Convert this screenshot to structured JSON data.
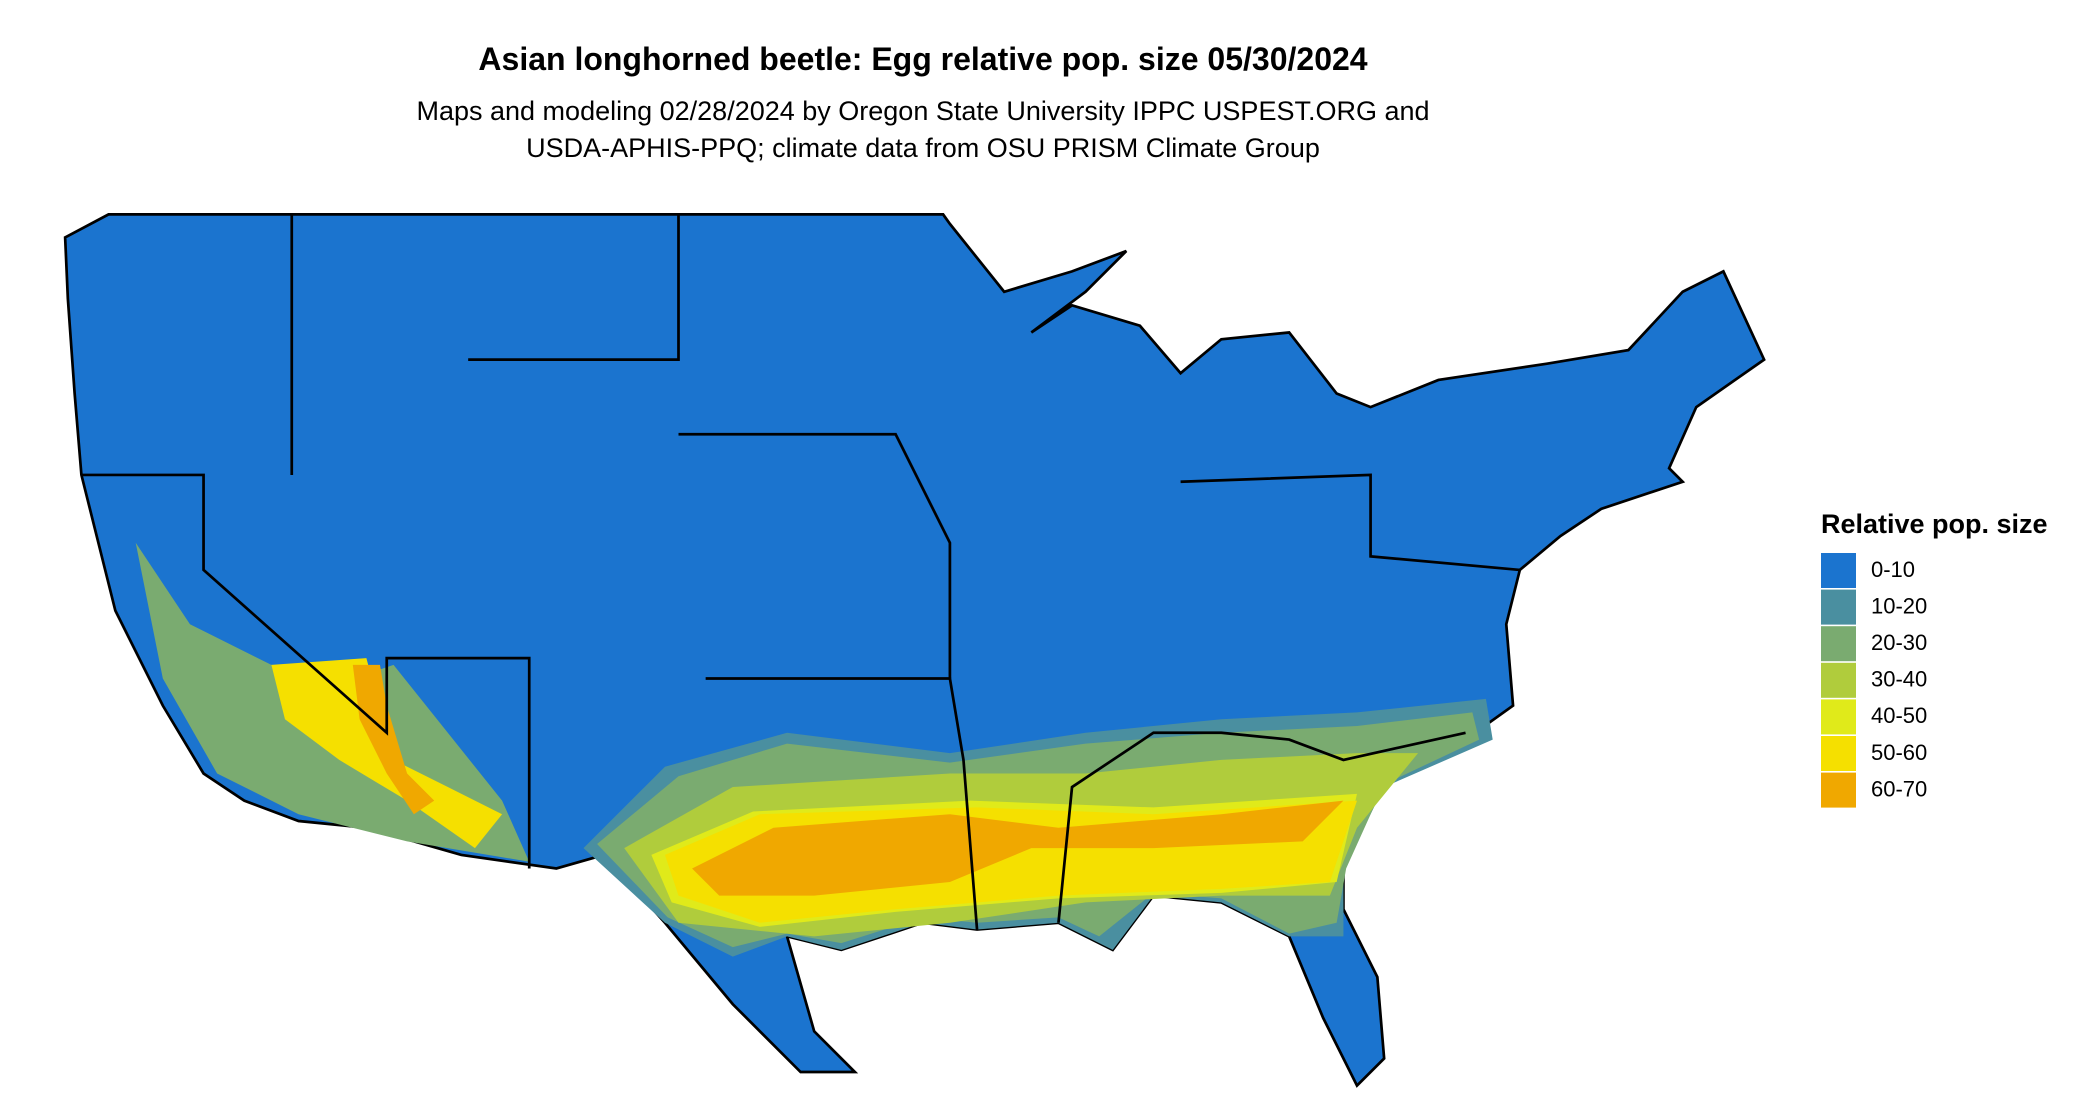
{
  "title": "Asian longhorned beetle: Egg relative pop. size 05/30/2024",
  "subtitle": [
    "Maps and modeling 02/28/2024 by Oregon State University IPPC USPEST.ORG and",
    "USDA-APHIS-PPQ; climate data from OSU PRISM Climate Group"
  ],
  "legend": {
    "title": "Relative pop. size",
    "items": [
      {
        "label": "0-10",
        "color": "#1b74cf"
      },
      {
        "label": "10-20",
        "color": "#4a8fa0"
      },
      {
        "label": "20-30",
        "color": "#7aab70"
      },
      {
        "label": "30-40",
        "color": "#b0cc3c"
      },
      {
        "label": "40-50",
        "color": "#e0ea1a"
      },
      {
        "label": "50-60",
        "color": "#f5e000"
      },
      {
        "label": "60-70",
        "color": "#f0a800"
      }
    ]
  }
}
